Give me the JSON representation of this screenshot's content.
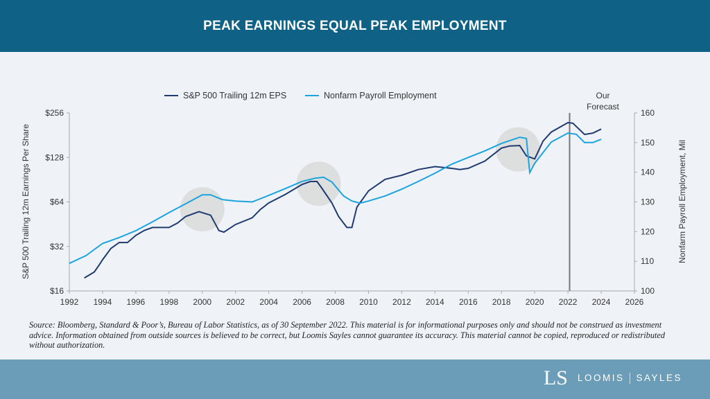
{
  "header": {
    "title": "PEAK EARNINGS EQUAL PEAK EMPLOYMENT"
  },
  "footnote": "Source: Bloomberg, Standard & Poor’s, Bureau of Labor Statistics, as of 30 September 2022. This material is for informational purposes only and should not be construed as investment advice. Information obtained from outside sources is believed to be correct, but Loomis Sayles cannot guarantee its accuracy. This material cannot be copied, reproduced or redistributed without authorization.",
  "footer": {
    "logo_mark": "LS",
    "logo_left": "LOOMIS",
    "logo_right": "SAYLES"
  },
  "colors": {
    "eps": "#1f3a6e",
    "payroll": "#1aa3dd",
    "header": "#0f6185",
    "footer": "#6b9cb8",
    "highlight": "#d9d9d9"
  },
  "chart_data": {
    "type": "line",
    "title": "",
    "xlabel": "",
    "ylabel": "S&P 500 Trailing 12m Earnings Per Share",
    "ylabel_right": "Nonfarm Payroll Employment, Mil",
    "xlim": [
      1992,
      2026
    ],
    "ylim": [
      16,
      256
    ],
    "ylim_right": [
      100,
      160
    ],
    "yscale": "log2",
    "x_ticks": [
      "1992",
      "1994",
      "1996",
      "1998",
      "2000",
      "2002",
      "2004",
      "2006",
      "2008",
      "2010",
      "2012",
      "2014",
      "2016",
      "2018",
      "2020",
      "2022",
      "2024",
      "2026"
    ],
    "y_ticks": [
      "$16",
      "$32",
      "$64",
      "$128",
      "$256"
    ],
    "y_ticks_right": [
      "100",
      "110",
      "120",
      "130",
      "140",
      "150",
      "160"
    ],
    "legend_position": "top-center",
    "grid": false,
    "forecast_marker": {
      "x": 2022.1,
      "label_line1": "Our",
      "label_line2": "Forecast"
    },
    "highlights": [
      {
        "x": 2000,
        "y": 57
      },
      {
        "x": 2007,
        "y": 85
      },
      {
        "x": 2019,
        "y": 145
      }
    ],
    "series": [
      {
        "name": "S&P 500 Trailing 12m EPS",
        "axis": "left",
        "x": [
          1992.9,
          1993.2,
          1993.5,
          1993.8,
          1994,
          1994.5,
          1995,
          1995.5,
          1996,
          1996.5,
          1997,
          1998,
          1998.5,
          1999,
          1999.8,
          2000.5,
          2001,
          2001.3,
          2002,
          2003,
          2003.5,
          2004,
          2005,
          2006,
          2006.5,
          2006.9,
          2007.2,
          2007.8,
          2008.2,
          2008.7,
          2009,
          2009.3,
          2010,
          2011,
          2012,
          2013,
          2014,
          2015,
          2015.5,
          2016,
          2017,
          2018,
          2018.5,
          2019.1,
          2019.5,
          2020,
          2020.5,
          2021,
          2022,
          2022.3,
          2023,
          2023.5,
          2024
        ],
        "values": [
          19.6,
          20.5,
          21.5,
          24,
          26,
          31,
          34,
          34,
          38,
          41,
          43,
          43,
          46,
          51,
          55,
          52,
          41,
          40,
          45,
          50,
          57,
          63,
          72,
          84,
          88,
          88,
          79,
          63,
          51,
          43,
          43,
          59,
          76,
          91,
          97,
          106,
          111,
          108,
          106,
          108,
          121,
          148,
          153,
          154,
          131,
          125,
          165,
          190,
          220,
          218,
          183,
          187,
          199
        ]
      },
      {
        "name": "Nonfarm Payroll Employment",
        "axis": "right",
        "x": [
          1992,
          1993,
          1994,
          1995,
          1996,
          1997,
          1998,
          1999,
          2000,
          2000.5,
          2001.2,
          2002,
          2003,
          2004,
          2005,
          2006,
          2006.8,
          2007.3,
          2007.8,
          2008.5,
          2009,
          2009.5,
          2010,
          2011,
          2012,
          2013,
          2014,
          2015,
          2016,
          2017,
          2018,
          2019.1,
          2019.5,
          2019.7,
          2020,
          2021,
          2022,
          2022.5,
          2023,
          2023.5,
          2024
        ],
        "values": [
          109.3,
          111.9,
          116,
          118,
          120.3,
          123.3,
          126.4,
          129.4,
          132.4,
          132.4,
          130.8,
          130.3,
          130,
          132.2,
          134.5,
          136.9,
          138,
          138.3,
          136.7,
          132,
          130.3,
          129.6,
          130.3,
          132,
          134.3,
          136.9,
          139.7,
          142.7,
          145,
          147.2,
          149.7,
          151.8,
          151.4,
          139.9,
          143,
          150.2,
          153.2,
          152.8,
          150,
          150,
          151.1
        ]
      }
    ]
  }
}
